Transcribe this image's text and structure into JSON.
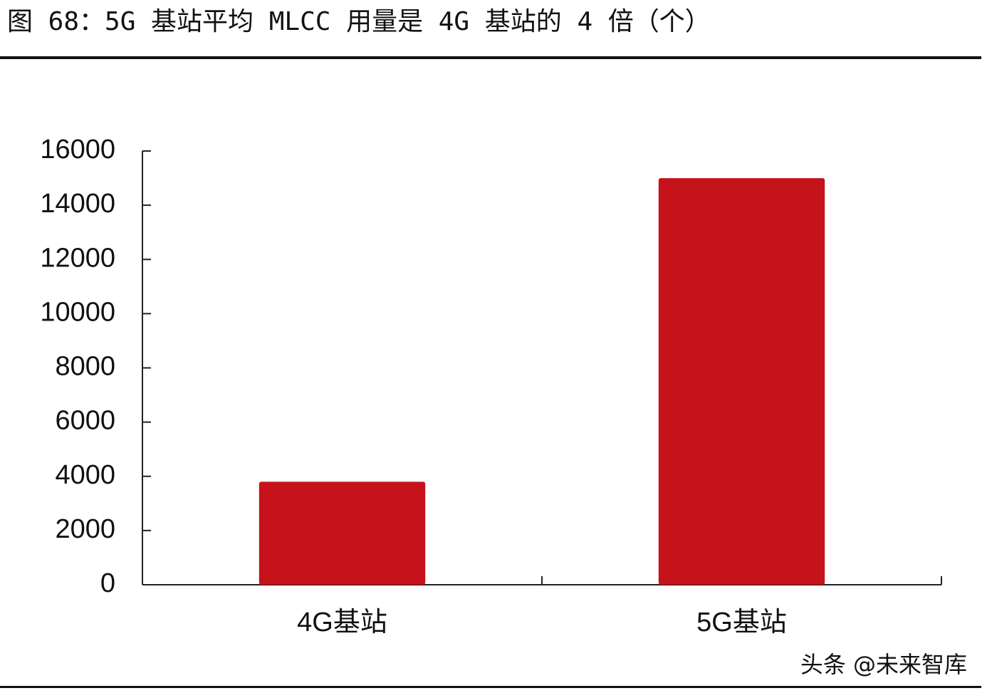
{
  "chart_data": {
    "type": "bar",
    "title": "图 68：5G 基站平均 MLCC 用量是 4G 基站的 4 倍（个）",
    "categories": [
      "4G基站",
      "5G基站"
    ],
    "values": [
      3800,
      15000
    ],
    "color": "#c5121b",
    "ylim": [
      0,
      16000
    ],
    "yticks": [
      0,
      2000,
      4000,
      6000,
      8000,
      10000,
      12000,
      14000,
      16000
    ],
    "grid": false,
    "watermark": "头条 @未来智库"
  }
}
